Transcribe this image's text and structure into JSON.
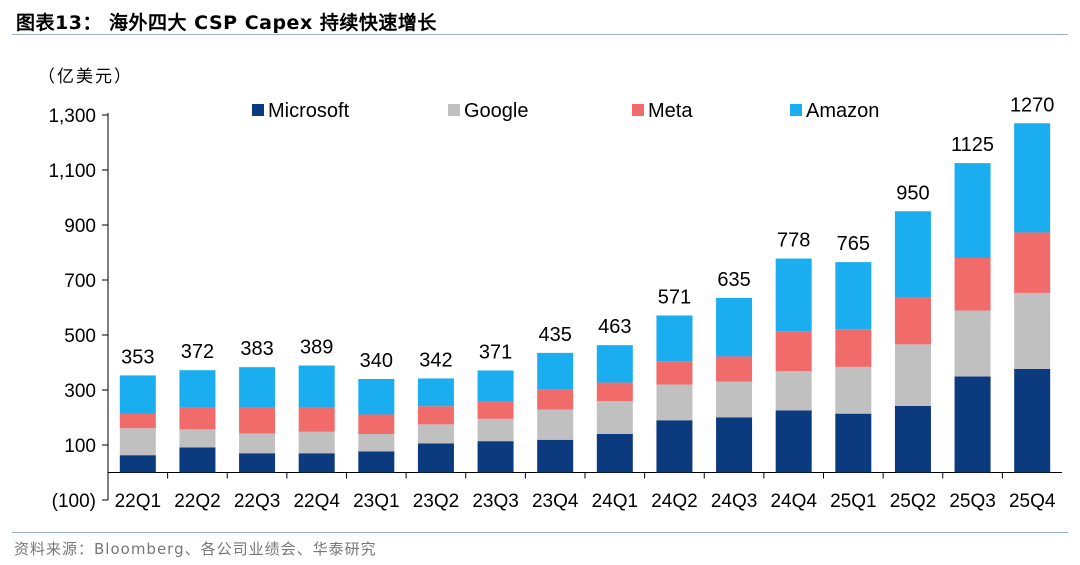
{
  "header": {
    "title": "图表13：  海外四大 CSP Capex 持续快速增长"
  },
  "unit_label": "（亿美元）",
  "source": "资料来源：Bloomberg、各公司业绩会、华泰研究",
  "colors": {
    "Microsoft": "#0b3a7e",
    "Google": "#c0c0c0",
    "Meta": "#f26b6b",
    "Amazon": "#1aaef0"
  },
  "chart_data": {
    "type": "bar",
    "stacked": true,
    "title": "海外四大 CSP Capex 持续快速增长",
    "ylabel": "（亿美元）",
    "xlabel": "",
    "ylim": [
      -100,
      1300
    ],
    "yticks": [
      -100,
      100,
      300,
      500,
      700,
      900,
      1100,
      1300
    ],
    "ytick_labels": [
      "(100)",
      "100",
      "300",
      "500",
      "700",
      "900",
      "1,100",
      "1,300"
    ],
    "categories": [
      "22Q1",
      "22Q2",
      "22Q3",
      "22Q4",
      "23Q1",
      "23Q2",
      "23Q3",
      "23Q4",
      "24Q1",
      "24Q2",
      "24Q3",
      "24Q4",
      "25Q1",
      "25Q2",
      "25Q3",
      "25Q4"
    ],
    "legend_position": "top",
    "series": [
      {
        "name": "Microsoft",
        "values": [
          63,
          91,
          70,
          70,
          77,
          106,
          114,
          119,
          140,
          190,
          200,
          226,
          214,
          242,
          349,
          377
        ]
      },
      {
        "name": "Google",
        "values": [
          98,
          66,
          72,
          78,
          63,
          69,
          81,
          110,
          120,
          130,
          130,
          143,
          170,
          224,
          240,
          276
        ]
      },
      {
        "name": "Meta",
        "values": [
          52,
          78,
          94,
          87,
          71,
          66,
          63,
          72,
          67,
          85,
          92,
          145,
          137,
          170,
          191,
          220
        ]
      },
      {
        "name": "Amazon",
        "values": [
          140,
          137,
          147,
          154,
          129,
          101,
          113,
          134,
          136,
          166,
          213,
          264,
          244,
          314,
          345,
          397
        ]
      }
    ],
    "totals": [
      353,
      372,
      383,
      389,
      340,
      342,
      371,
      435,
      463,
      571,
      635,
      778,
      765,
      950,
      1125,
      1270
    ]
  }
}
